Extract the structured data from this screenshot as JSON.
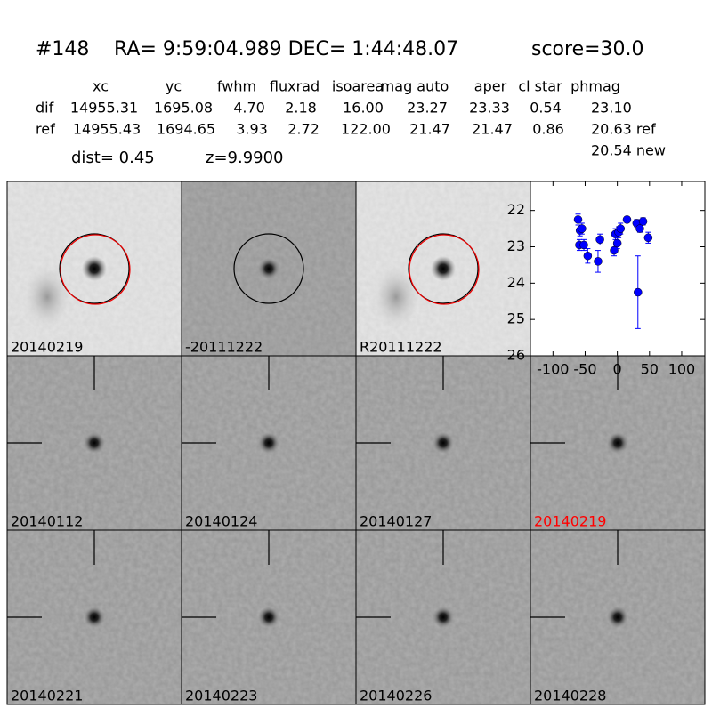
{
  "header": {
    "id": "#148",
    "coords": "RA= 9:59:04.989 DEC= 1:44:48.07",
    "score": "score=30.0"
  },
  "table": {
    "columns": [
      "xc",
      "yc",
      "fwhm",
      "fluxrad",
      "isoarea",
      "mag auto",
      "aper",
      "cl star",
      "phmag"
    ],
    "rows": [
      [
        "dif",
        "14955.31",
        "1695.08",
        "4.70",
        "2.18",
        "16.00",
        "23.27",
        "23.33",
        "0.54",
        "23.10"
      ],
      [
        "ref",
        "14955.43",
        "1694.65",
        "3.93",
        "2.72",
        "122.00",
        "21.47",
        "21.47",
        "0.86",
        "20.63 ref"
      ]
    ],
    "extra": "20.54 new"
  },
  "dist": "dist=  0.45",
  "z": "z=9.9900",
  "stamps": [
    {
      "label": "20140219",
      "color": "#000000"
    },
    {
      "label": "-20111222",
      "color": "#000000"
    },
    {
      "label": "R20111222",
      "color": "#000000"
    },
    {
      "label": "20140112",
      "color": "#000000"
    },
    {
      "label": "20140124",
      "color": "#000000"
    },
    {
      "label": "20140127",
      "color": "#000000"
    },
    {
      "label": "20140219",
      "color": "#ff0000"
    },
    {
      "label": "20140221",
      "color": "#000000"
    },
    {
      "label": "20140223",
      "color": "#000000"
    },
    {
      "label": "20140226",
      "color": "#000000"
    },
    {
      "label": "20140228",
      "color": "#000000"
    }
  ],
  "chart_data": {
    "type": "scatter",
    "x": [
      -61,
      -58,
      -55,
      -59,
      -52,
      -46,
      -30,
      -27,
      -5,
      -3,
      0,
      2,
      5,
      15,
      30,
      32,
      35,
      40,
      48
    ],
    "values": [
      22.25,
      22.55,
      22.5,
      22.95,
      22.95,
      23.25,
      23.4,
      22.8,
      23.1,
      22.65,
      22.9,
      22.6,
      22.5,
      22.25,
      22.35,
      24.25,
      22.5,
      22.3,
      22.75
    ],
    "errors": [
      0.15,
      0.15,
      0.15,
      0.15,
      0.15,
      0.2,
      0.3,
      0.15,
      0.15,
      0.15,
      0.15,
      0.15,
      0.15,
      0.08,
      0.1,
      1.0,
      0.1,
      0.1,
      0.15
    ],
    "color": "#0000ff",
    "xlim": [
      -135,
      136
    ],
    "ylim": [
      21.2,
      26
    ],
    "y_inverted": true,
    "xticks": [
      -100,
      -50,
      0,
      50,
      100
    ],
    "yticks": [
      22,
      23,
      24,
      25,
      26
    ]
  }
}
